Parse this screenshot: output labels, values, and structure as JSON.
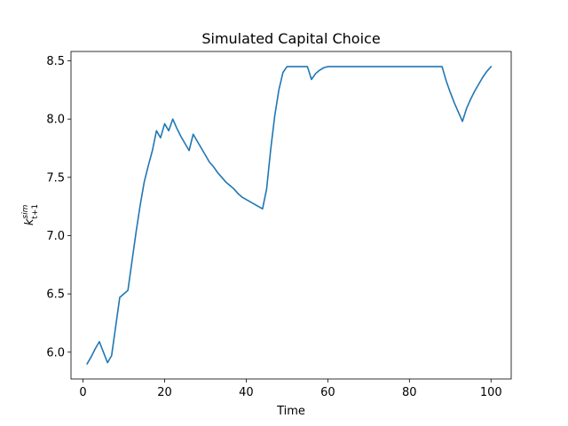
{
  "chart_data": {
    "type": "line",
    "title": "Simulated Capital Choice",
    "xlabel": "Time",
    "ylabel_main": "k",
    "ylabel_sup": "sim",
    "ylabel_sub": "t+1",
    "xlim": [
      -2.95,
      104.95
    ],
    "ylim": [
      5.77,
      8.58
    ],
    "xticks": [
      0,
      20,
      40,
      60,
      80,
      100
    ],
    "yticks": [
      6.0,
      6.5,
      7.0,
      7.5,
      8.0,
      8.5
    ],
    "ytick_labels": [
      "6.0",
      "6.5",
      "7.0",
      "7.5",
      "8.0",
      "8.5"
    ],
    "line_color": "#1f77b4",
    "series": [
      {
        "x": [
          1,
          2,
          3,
          4,
          5,
          6,
          7,
          8,
          9,
          10,
          11,
          12,
          13,
          14,
          15,
          16,
          17,
          18,
          19,
          20,
          21,
          22,
          23,
          24,
          25,
          26,
          27,
          28,
          29,
          30,
          31,
          32,
          33,
          34,
          35,
          36,
          37,
          38,
          39,
          40,
          41,
          42,
          43,
          44,
          45,
          46,
          47,
          48,
          49,
          50,
          51,
          52,
          53,
          54,
          55,
          56,
          57,
          58,
          59,
          60,
          61,
          62,
          63,
          64,
          65,
          66,
          67,
          68,
          69,
          70,
          71,
          72,
          73,
          74,
          75,
          76,
          77,
          78,
          79,
          80,
          81,
          82,
          83,
          84,
          85,
          86,
          87,
          88,
          89,
          90,
          91,
          92,
          93,
          94,
          95,
          96,
          97,
          98,
          99,
          100
        ],
        "y": [
          5.9,
          5.96,
          6.03,
          6.09,
          6.0,
          5.91,
          5.97,
          6.22,
          6.47,
          6.5,
          6.53,
          6.78,
          7.03,
          7.26,
          7.46,
          7.6,
          7.73,
          7.9,
          7.84,
          7.96,
          7.9,
          8.0,
          7.92,
          7.85,
          7.79,
          7.73,
          7.87,
          7.81,
          7.75,
          7.69,
          7.63,
          7.59,
          7.54,
          7.5,
          7.46,
          7.43,
          7.4,
          7.36,
          7.33,
          7.31,
          7.29,
          7.27,
          7.25,
          7.23,
          7.4,
          7.74,
          8.03,
          8.25,
          8.4,
          8.45,
          8.45,
          8.45,
          8.45,
          8.45,
          8.45,
          8.34,
          8.39,
          8.42,
          8.44,
          8.45,
          8.45,
          8.45,
          8.45,
          8.45,
          8.45,
          8.45,
          8.45,
          8.45,
          8.45,
          8.45,
          8.45,
          8.45,
          8.45,
          8.45,
          8.45,
          8.45,
          8.45,
          8.45,
          8.45,
          8.45,
          8.45,
          8.45,
          8.45,
          8.45,
          8.45,
          8.45,
          8.45,
          8.45,
          8.33,
          8.23,
          8.14,
          8.06,
          7.98,
          8.09,
          8.17,
          8.24,
          8.3,
          8.36,
          8.41,
          8.45
        ]
      }
    ]
  }
}
